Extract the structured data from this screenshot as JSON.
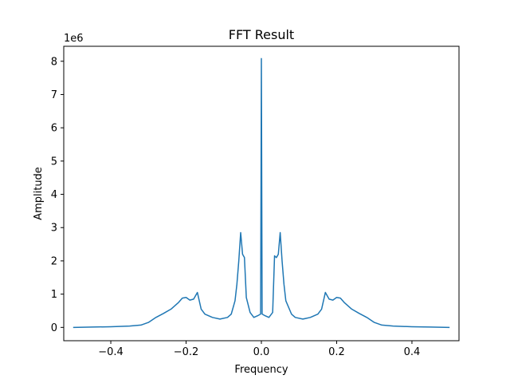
{
  "chart_data": {
    "type": "line",
    "title": "FFT Result",
    "xlabel": "Frequency",
    "ylabel": "Amplitude",
    "y_offset_label": "1e6",
    "xlim": [
      -0.525,
      0.525
    ],
    "ylim": [
      -0.4,
      8.45
    ],
    "y_multiplier": 1000000,
    "grid": false,
    "legend": "none",
    "x_ticks": [
      -0.4,
      -0.2,
      0.0,
      0.2,
      0.4
    ],
    "x_tick_labels": [
      "−0.4",
      "−0.2",
      "0.0",
      "0.2",
      "0.4"
    ],
    "y_ticks": [
      0,
      1,
      2,
      3,
      4,
      5,
      6,
      7,
      8
    ],
    "y_tick_labels": [
      "0",
      "1",
      "2",
      "3",
      "4",
      "5",
      "6",
      "7",
      "8"
    ],
    "series": [
      {
        "color": "#1f77b4",
        "points": [
          [
            -0.5,
            0.0
          ],
          [
            -0.45,
            0.01
          ],
          [
            -0.4,
            0.02
          ],
          [
            -0.35,
            0.04
          ],
          [
            -0.32,
            0.07
          ],
          [
            -0.3,
            0.15
          ],
          [
            -0.28,
            0.3
          ],
          [
            -0.26,
            0.42
          ],
          [
            -0.24,
            0.55
          ],
          [
            -0.22,
            0.75
          ],
          [
            -0.21,
            0.88
          ],
          [
            -0.2,
            0.9
          ],
          [
            -0.19,
            0.82
          ],
          [
            -0.18,
            0.85
          ],
          [
            -0.17,
            1.05
          ],
          [
            -0.16,
            0.55
          ],
          [
            -0.15,
            0.4
          ],
          [
            -0.13,
            0.3
          ],
          [
            -0.11,
            0.25
          ],
          [
            -0.09,
            0.3
          ],
          [
            -0.08,
            0.4
          ],
          [
            -0.07,
            0.8
          ],
          [
            -0.065,
            1.3
          ],
          [
            -0.06,
            2.0
          ],
          [
            -0.055,
            2.85
          ],
          [
            -0.05,
            2.2
          ],
          [
            -0.045,
            2.1
          ],
          [
            -0.04,
            0.9
          ],
          [
            -0.03,
            0.45
          ],
          [
            -0.02,
            0.3
          ],
          [
            -0.01,
            0.35
          ],
          [
            -0.002,
            0.4
          ],
          [
            0.0,
            8.08
          ],
          [
            0.002,
            0.4
          ],
          [
            0.01,
            0.35
          ],
          [
            0.02,
            0.3
          ],
          [
            0.03,
            0.45
          ],
          [
            0.035,
            2.15
          ],
          [
            0.04,
            2.1
          ],
          [
            0.045,
            2.2
          ],
          [
            0.05,
            2.85
          ],
          [
            0.055,
            2.0
          ],
          [
            0.06,
            1.3
          ],
          [
            0.065,
            0.8
          ],
          [
            0.08,
            0.4
          ],
          [
            0.09,
            0.3
          ],
          [
            0.11,
            0.25
          ],
          [
            0.13,
            0.3
          ],
          [
            0.15,
            0.4
          ],
          [
            0.16,
            0.55
          ],
          [
            0.17,
            1.05
          ],
          [
            0.18,
            0.85
          ],
          [
            0.19,
            0.82
          ],
          [
            0.2,
            0.9
          ],
          [
            0.21,
            0.88
          ],
          [
            0.22,
            0.75
          ],
          [
            0.24,
            0.55
          ],
          [
            0.26,
            0.42
          ],
          [
            0.28,
            0.3
          ],
          [
            0.3,
            0.15
          ],
          [
            0.32,
            0.07
          ],
          [
            0.35,
            0.04
          ],
          [
            0.4,
            0.02
          ],
          [
            0.45,
            0.01
          ],
          [
            0.5,
            0.0
          ]
        ]
      }
    ]
  }
}
